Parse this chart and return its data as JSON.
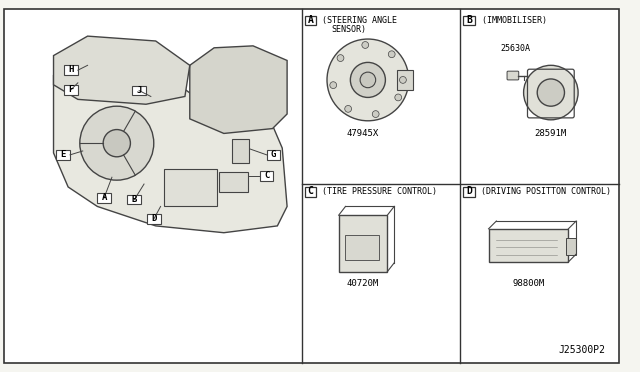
{
  "bg_color": "#f5f5f0",
  "border_color": "#333333",
  "line_color": "#444444",
  "title_bottom": "J25300P2",
  "sections": {
    "A": {
      "label": "A",
      "title_line1": "(STEERING ANGLE",
      "title_line2": "SENSOR)",
      "part": "47945X"
    },
    "B": {
      "label": "B",
      "title_line1": "(IMMOBILISER)",
      "part": "28591M",
      "extra_part": "25630A"
    },
    "C": {
      "label": "C",
      "title_line1": "(TIRE PRESSURE CONTROL)",
      "part": "40720M"
    },
    "D": {
      "label": "D",
      "title_line1": "(DRIVING POSITTON CONTROL)",
      "part": "98800M"
    }
  },
  "callout_labels": [
    "A",
    "B",
    "C",
    "D",
    "E",
    "F",
    "G",
    "H",
    "J"
  ],
  "fig_width": 6.4,
  "fig_height": 3.72
}
